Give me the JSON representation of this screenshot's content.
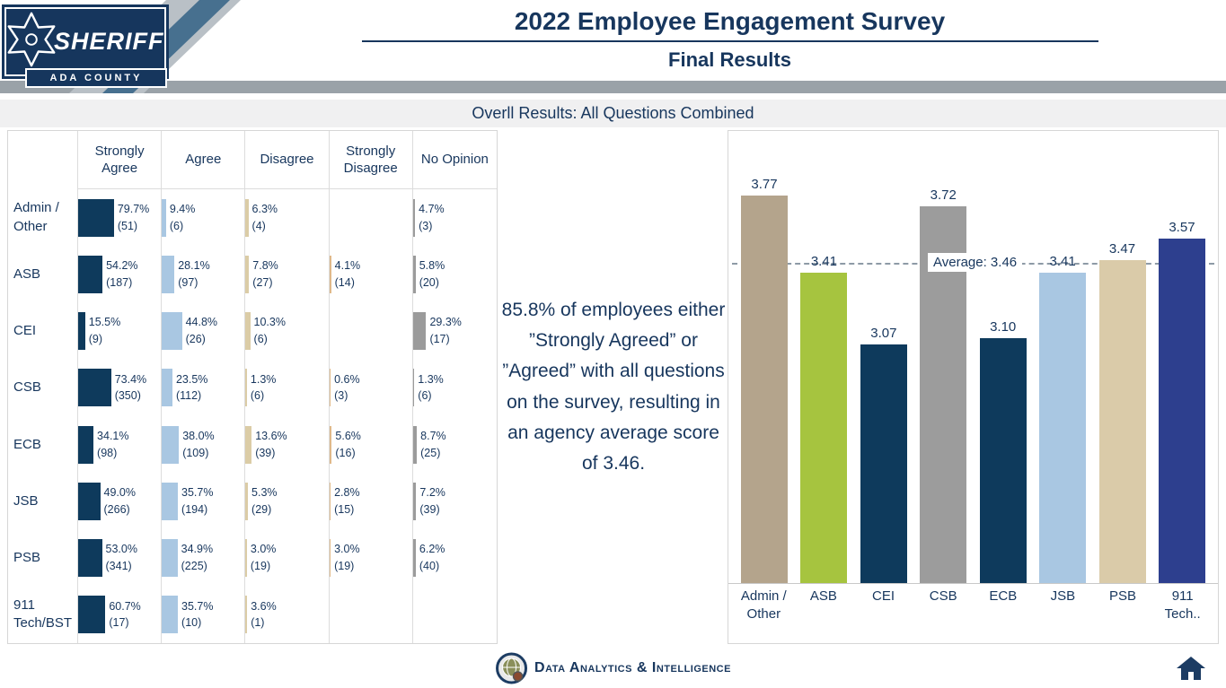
{
  "header": {
    "title": "2022 Employee Engagement Survey",
    "subtitle": "Final Results",
    "logo_text": "SHERIFF",
    "logo_subtext": "ADA COUNTY"
  },
  "section": {
    "title": "Overll Results: All Questions Combined"
  },
  "callout": {
    "text": "85.8% of employees either ”Strongly Agreed” or ”Agreed” with all questions on the survey, resulting in an agency average score of 3.46."
  },
  "footer": {
    "brand": "Data Analytics & Intelligence"
  },
  "colors": {
    "navy_text": "#17365d",
    "strongly_agree": "#0e3a5c",
    "agree": "#a9c7e2",
    "disagree": "#dbcca6",
    "strongly_disagree": "#e0b98a",
    "no_opinion": "#9b9b9b",
    "header_band": "#9aa2a8"
  },
  "chart_data": [
    {
      "type": "table",
      "title": "Overll Results: All Questions Combined",
      "columns": [
        "Strongly Agree",
        "Agree",
        "Disagree",
        "Strongly Disagree",
        "No Opinion"
      ],
      "column_colors": [
        "#0e3a5c",
        "#a9c7e2",
        "#dbcca6",
        "#e0b98a",
        "#9b9b9b"
      ],
      "rows": [
        {
          "label": "Admin / Other",
          "values": [
            {
              "pct": 79.7,
              "pct_label": "79.7%",
              "count_label": "(51)"
            },
            {
              "pct": 9.4,
              "pct_label": "9.4%",
              "count_label": "(6)"
            },
            {
              "pct": 6.3,
              "pct_label": "6.3%",
              "count_label": "(4)"
            },
            null,
            {
              "pct": 4.7,
              "pct_label": "4.7%",
              "count_label": "(3)"
            }
          ]
        },
        {
          "label": "ASB",
          "values": [
            {
              "pct": 54.2,
              "pct_label": "54.2%",
              "count_label": "(187)"
            },
            {
              "pct": 28.1,
              "pct_label": "28.1%",
              "count_label": "(97)"
            },
            {
              "pct": 7.8,
              "pct_label": "7.8%",
              "count_label": "(27)"
            },
            {
              "pct": 4.1,
              "pct_label": "4.1%",
              "count_label": "(14)"
            },
            {
              "pct": 5.8,
              "pct_label": "5.8%",
              "count_label": "(20)"
            }
          ]
        },
        {
          "label": "CEI",
          "values": [
            {
              "pct": 15.5,
              "pct_label": "15.5%",
              "count_label": "(9)"
            },
            {
              "pct": 44.8,
              "pct_label": "44.8%",
              "count_label": "(26)"
            },
            {
              "pct": 10.3,
              "pct_label": "10.3%",
              "count_label": "(6)"
            },
            null,
            {
              "pct": 29.3,
              "pct_label": "29.3%",
              "count_label": "(17)"
            }
          ]
        },
        {
          "label": "CSB",
          "values": [
            {
              "pct": 73.4,
              "pct_label": "73.4%",
              "count_label": "(350)"
            },
            {
              "pct": 23.5,
              "pct_label": "23.5%",
              "count_label": "(112)"
            },
            {
              "pct": 1.3,
              "pct_label": "1.3%",
              "count_label": "(6)"
            },
            {
              "pct": 0.6,
              "pct_label": "0.6%",
              "count_label": "(3)"
            },
            {
              "pct": 1.3,
              "pct_label": "1.3%",
              "count_label": "(6)"
            }
          ]
        },
        {
          "label": "ECB",
          "values": [
            {
              "pct": 34.1,
              "pct_label": "34.1%",
              "count_label": "(98)"
            },
            {
              "pct": 38.0,
              "pct_label": "38.0%",
              "count_label": "(109)"
            },
            {
              "pct": 13.6,
              "pct_label": "13.6%",
              "count_label": "(39)"
            },
            {
              "pct": 5.6,
              "pct_label": "5.6%",
              "count_label": "(16)"
            },
            {
              "pct": 8.7,
              "pct_label": "8.7%",
              "count_label": "(25)"
            }
          ]
        },
        {
          "label": "JSB",
          "values": [
            {
              "pct": 49.0,
              "pct_label": "49.0%",
              "count_label": "(266)"
            },
            {
              "pct": 35.7,
              "pct_label": "35.7%",
              "count_label": "(194)"
            },
            {
              "pct": 5.3,
              "pct_label": "5.3%",
              "count_label": "(29)"
            },
            {
              "pct": 2.8,
              "pct_label": "2.8%",
              "count_label": "(15)"
            },
            {
              "pct": 7.2,
              "pct_label": "7.2%",
              "count_label": "(39)"
            }
          ]
        },
        {
          "label": "PSB",
          "values": [
            {
              "pct": 53.0,
              "pct_label": "53.0%",
              "count_label": "(341)"
            },
            {
              "pct": 34.9,
              "pct_label": "34.9%",
              "count_label": "(225)"
            },
            {
              "pct": 3.0,
              "pct_label": "3.0%",
              "count_label": "(19)"
            },
            {
              "pct": 3.0,
              "pct_label": "3.0%",
              "count_label": "(19)"
            },
            {
              "pct": 6.2,
              "pct_label": "6.2%",
              "count_label": "(40)"
            }
          ]
        },
        {
          "label": "911 Tech/BST",
          "values": [
            {
              "pct": 60.7,
              "pct_label": "60.7%",
              "count_label": "(17)"
            },
            {
              "pct": 35.7,
              "pct_label": "35.7%",
              "count_label": "(10)"
            },
            {
              "pct": 3.6,
              "pct_label": "3.6%",
              "count_label": "(1)"
            },
            null,
            null
          ]
        }
      ]
    },
    {
      "type": "bar",
      "categories": [
        "Admin / Other",
        "ASB",
        "CEI",
        "CSB",
        "ECB",
        "JSB",
        "PSB",
        "911 Tech.."
      ],
      "values": [
        3.77,
        3.41,
        3.07,
        3.72,
        3.1,
        3.41,
        3.47,
        3.57
      ],
      "value_labels": [
        "3.77",
        "3.41",
        "3.07",
        "3.72",
        "3.10",
        "3.41",
        "3.47",
        "3.57"
      ],
      "bar_colors": [
        "#b4a48c",
        "#a6c43f",
        "#0e3a5c",
        "#9c9c9c",
        "#0e3a5c",
        "#a9c7e2",
        "#dacba9",
        "#2d3f8e"
      ],
      "average": {
        "value": 3.46,
        "label": "Average: 3.46"
      },
      "ylim": [
        1.95,
        4.08
      ],
      "grid": false,
      "legend": false
    }
  ]
}
